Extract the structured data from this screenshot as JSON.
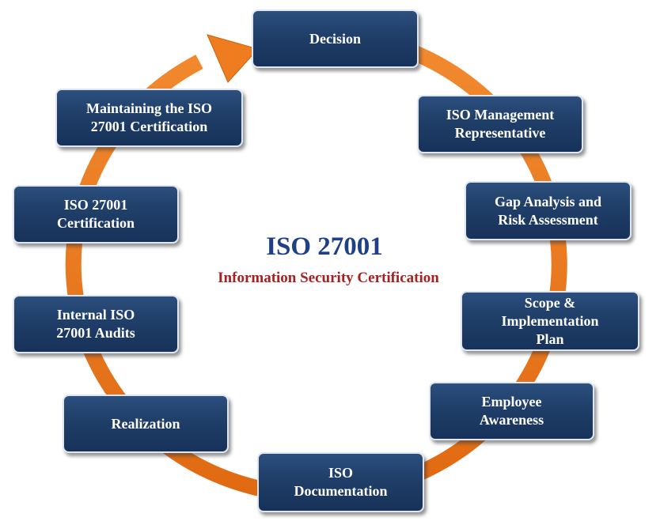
{
  "title": "ISO 27001",
  "subtitle": "Information Security Certification",
  "colors": {
    "box_fill": "#1f3e68",
    "box_border": "#dfe6ef",
    "ring": "#ec7c22",
    "title": "#1f3f86",
    "subtitle": "#a62121"
  },
  "steps": [
    {
      "label": "Decision"
    },
    {
      "label": "ISO Management\nRepresentative"
    },
    {
      "label": "Gap Analysis  and\nRisk Assessment"
    },
    {
      "label": "Scope &\nImplementation\nPlan"
    },
    {
      "label": "Employee\nAwareness"
    },
    {
      "label": "ISO\nDocumentation"
    },
    {
      "label": "Realization"
    },
    {
      "label": "Internal ISO\n27001 Audits"
    },
    {
      "label": "ISO 27001\nCertification"
    },
    {
      "label": "Maintaining the ISO\n27001 Certification"
    }
  ]
}
